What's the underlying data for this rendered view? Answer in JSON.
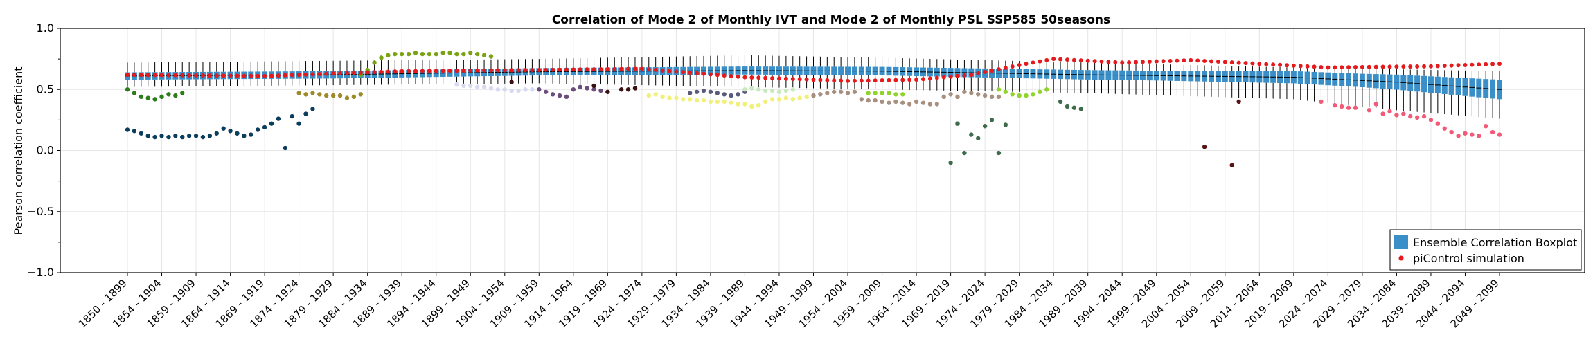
{
  "chart_data": {
    "type": "box",
    "title": "Correlation of Mode 2 of Monthly IVT and Mode 2 of Monthly PSL SSP585 50seasons",
    "xlabel": "",
    "ylabel": "Pearson correlation coefficient",
    "ylim": [
      -1.0,
      1.0
    ],
    "yticks": [
      "1.0",
      "0.5",
      "0.0",
      "−0.5",
      "−1.0"
    ],
    "grid": true,
    "legend_position": "bottom-right",
    "legend": [
      {
        "label": "Ensemble Correlation Boxplot",
        "marker": "square",
        "color": "#3a8fc8"
      },
      {
        "label": "piControl simulation",
        "marker": "dot",
        "color": "#e41a1c"
      }
    ],
    "x_tick_labels": [
      "1850 - 1899",
      "1854 - 1904",
      "1859 - 1909",
      "1864 - 1914",
      "1869 - 1919",
      "1874 - 1924",
      "1879 - 1929",
      "1884 - 1934",
      "1889 - 1939",
      "1894 - 1944",
      "1899 - 1949",
      "1904 - 1954",
      "1909 - 1959",
      "1914 - 1964",
      "1919 - 1969",
      "1924 - 1974",
      "1929 - 1979",
      "1934 - 1984",
      "1939 - 1989",
      "1944 - 1994",
      "1949 - 1999",
      "1954 - 2004",
      "1959 - 2009",
      "1964 - 2014",
      "1969 - 2019",
      "1974 - 2024",
      "1979 - 2029",
      "1984 - 2034",
      "1989 - 2039",
      "1994 - 2044",
      "1999 - 2049",
      "2004 - 2054",
      "2009 - 2059",
      "2014 - 2064",
      "2019 - 2069",
      "2024 - 2074",
      "2029 - 2079",
      "2034 - 2084",
      "2039 - 2089",
      "2044 - 2094",
      "2049 - 2099"
    ],
    "box_window_count": 201,
    "box_median_keyframes": [
      [
        0,
        0.61
      ],
      [
        30,
        0.62
      ],
      [
        60,
        0.645
      ],
      [
        90,
        0.655
      ],
      [
        110,
        0.65
      ],
      [
        140,
        0.62
      ],
      [
        170,
        0.6
      ],
      [
        185,
        0.56
      ],
      [
        200,
        0.5
      ]
    ],
    "box_iqr_half_keyframes": [
      [
        0,
        0.03
      ],
      [
        60,
        0.03
      ],
      [
        110,
        0.035
      ],
      [
        150,
        0.04
      ],
      [
        180,
        0.055
      ],
      [
        200,
        0.08
      ]
    ],
    "box_whisker_low_keyframes": [
      [
        0,
        0.52
      ],
      [
        60,
        0.55
      ],
      [
        110,
        0.5
      ],
      [
        140,
        0.47
      ],
      [
        170,
        0.42
      ],
      [
        185,
        0.33
      ],
      [
        200,
        0.26
      ]
    ],
    "box_whisker_high_keyframes": [
      [
        0,
        0.72
      ],
      [
        60,
        0.75
      ],
      [
        90,
        0.78
      ],
      [
        110,
        0.76
      ],
      [
        140,
        0.72
      ],
      [
        170,
        0.68
      ],
      [
        200,
        0.65
      ]
    ],
    "picontrol_keyframes": [
      [
        0,
        0.62
      ],
      [
        20,
        0.61
      ],
      [
        40,
        0.65
      ],
      [
        60,
        0.66
      ],
      [
        75,
        0.67
      ],
      [
        90,
        0.6
      ],
      [
        105,
        0.57
      ],
      [
        115,
        0.58
      ],
      [
        123,
        0.62
      ],
      [
        130,
        0.7
      ],
      [
        135,
        0.75
      ],
      [
        145,
        0.72
      ],
      [
        155,
        0.74
      ],
      [
        165,
        0.71
      ],
      [
        175,
        0.68
      ],
      [
        190,
        0.69
      ],
      [
        200,
        0.71
      ]
    ],
    "model_point_groups": [
      {
        "color": "#0b3d5c",
        "points": [
          [
            0,
            0.17
          ],
          [
            1,
            0.16
          ],
          [
            2,
            0.14
          ],
          [
            3,
            0.12
          ],
          [
            4,
            0.11
          ],
          [
            5,
            0.12
          ],
          [
            6,
            0.11
          ],
          [
            7,
            0.12
          ],
          [
            8,
            0.11
          ],
          [
            9,
            0.12
          ],
          [
            10,
            0.12
          ],
          [
            11,
            0.11
          ],
          [
            12,
            0.12
          ],
          [
            13,
            0.14
          ],
          [
            14,
            0.18
          ],
          [
            15,
            0.16
          ],
          [
            16,
            0.14
          ],
          [
            17,
            0.12
          ],
          [
            18,
            0.13
          ],
          [
            19,
            0.17
          ],
          [
            20,
            0.19
          ],
          [
            21,
            0.22
          ],
          [
            22,
            0.26
          ],
          [
            23,
            0.02
          ],
          [
            24,
            0.28
          ],
          [
            25,
            0.22
          ],
          [
            26,
            0.3
          ],
          [
            27,
            0.34
          ]
        ]
      },
      {
        "color": "#2e7d1c",
        "points": [
          [
            0,
            0.5
          ],
          [
            1,
            0.47
          ],
          [
            2,
            0.44
          ],
          [
            3,
            0.43
          ],
          [
            4,
            0.42
          ],
          [
            5,
            0.44
          ],
          [
            6,
            0.46
          ],
          [
            7,
            0.45
          ],
          [
            8,
            0.47
          ]
        ]
      },
      {
        "color": "#9e8a2a",
        "points": [
          [
            25,
            0.47
          ],
          [
            26,
            0.46
          ],
          [
            27,
            0.47
          ],
          [
            28,
            0.46
          ],
          [
            29,
            0.45
          ],
          [
            30,
            0.45
          ],
          [
            31,
            0.45
          ],
          [
            32,
            0.43
          ],
          [
            33,
            0.44
          ],
          [
            34,
            0.46
          ]
        ]
      },
      {
        "color": "#7aa312",
        "points": [
          [
            34,
            0.62
          ],
          [
            35,
            0.66
          ],
          [
            36,
            0.72
          ],
          [
            37,
            0.76
          ],
          [
            38,
            0.78
          ],
          [
            39,
            0.79
          ],
          [
            40,
            0.79
          ],
          [
            41,
            0.79
          ],
          [
            42,
            0.8
          ],
          [
            43,
            0.79
          ],
          [
            44,
            0.79
          ],
          [
            45,
            0.79
          ],
          [
            46,
            0.8
          ],
          [
            47,
            0.8
          ],
          [
            48,
            0.79
          ],
          [
            49,
            0.79
          ],
          [
            50,
            0.8
          ],
          [
            51,
            0.79
          ],
          [
            52,
            0.78
          ],
          [
            53,
            0.77
          ]
        ]
      },
      {
        "color": "#d8d8f2",
        "points": [
          [
            48,
            0.54
          ],
          [
            49,
            0.53
          ],
          [
            50,
            0.53
          ],
          [
            51,
            0.52
          ],
          [
            52,
            0.52
          ],
          [
            53,
            0.51
          ],
          [
            54,
            0.5
          ],
          [
            55,
            0.5
          ],
          [
            56,
            0.49
          ],
          [
            57,
            0.49
          ],
          [
            58,
            0.5
          ],
          [
            59,
            0.5
          ]
        ]
      },
      {
        "color": "#6b4c7a",
        "points": [
          [
            60,
            0.5
          ],
          [
            61,
            0.48
          ],
          [
            62,
            0.46
          ],
          [
            63,
            0.45
          ],
          [
            64,
            0.44
          ],
          [
            65,
            0.5
          ],
          [
            66,
            0.52
          ],
          [
            67,
            0.51
          ],
          [
            68,
            0.5
          ],
          [
            69,
            0.49
          ]
        ]
      },
      {
        "color": "#3a1010",
        "points": [
          [
            56,
            0.56
          ],
          [
            68,
            0.53
          ],
          [
            70,
            0.48
          ],
          [
            72,
            0.5
          ],
          [
            73,
            0.5
          ],
          [
            74,
            0.51
          ]
        ]
      },
      {
        "color": "#f2ef7a",
        "points": [
          [
            76,
            0.45
          ],
          [
            77,
            0.46
          ],
          [
            78,
            0.44
          ],
          [
            79,
            0.43
          ],
          [
            80,
            0.43
          ],
          [
            81,
            0.42
          ],
          [
            82,
            0.42
          ],
          [
            83,
            0.41
          ],
          [
            84,
            0.41
          ],
          [
            85,
            0.4
          ],
          [
            86,
            0.4
          ],
          [
            87,
            0.4
          ],
          [
            88,
            0.39
          ],
          [
            89,
            0.38
          ],
          [
            90,
            0.38
          ],
          [
            91,
            0.36
          ],
          [
            92,
            0.37
          ],
          [
            93,
            0.4
          ],
          [
            94,
            0.42
          ],
          [
            95,
            0.42
          ],
          [
            96,
            0.43
          ],
          [
            97,
            0.42
          ],
          [
            98,
            0.43
          ],
          [
            99,
            0.44
          ]
        ]
      },
      {
        "color": "#5a5a7a",
        "points": [
          [
            82,
            0.47
          ],
          [
            83,
            0.48
          ],
          [
            84,
            0.49
          ],
          [
            85,
            0.48
          ],
          [
            86,
            0.47
          ],
          [
            87,
            0.46
          ],
          [
            88,
            0.45
          ],
          [
            89,
            0.46
          ],
          [
            90,
            0.48
          ]
        ]
      },
      {
        "color": "#c8e8c0",
        "points": [
          [
            90,
            0.5
          ],
          [
            91,
            0.51
          ],
          [
            92,
            0.5
          ],
          [
            93,
            0.49
          ],
          [
            94,
            0.49
          ],
          [
            95,
            0.48
          ],
          [
            96,
            0.49
          ],
          [
            97,
            0.5
          ]
        ]
      },
      {
        "color": "#a89080",
        "points": [
          [
            100,
            0.45
          ],
          [
            101,
            0.46
          ],
          [
            102,
            0.47
          ],
          [
            103,
            0.48
          ],
          [
            104,
            0.48
          ],
          [
            105,
            0.47
          ],
          [
            106,
            0.48
          ],
          [
            107,
            0.42
          ],
          [
            108,
            0.41
          ],
          [
            109,
            0.41
          ],
          [
            110,
            0.4
          ],
          [
            111,
            0.39
          ],
          [
            112,
            0.4
          ],
          [
            113,
            0.39
          ],
          [
            114,
            0.38
          ],
          [
            115,
            0.4
          ],
          [
            116,
            0.39
          ],
          [
            117,
            0.38
          ],
          [
            118,
            0.38
          ],
          [
            119,
            0.44
          ],
          [
            120,
            0.46
          ],
          [
            121,
            0.44
          ],
          [
            122,
            0.48
          ],
          [
            123,
            0.47
          ],
          [
            124,
            0.46
          ],
          [
            125,
            0.45
          ],
          [
            126,
            0.44
          ],
          [
            127,
            0.44
          ]
        ]
      },
      {
        "color": "#8fd42a",
        "points": [
          [
            108,
            0.47
          ],
          [
            109,
            0.47
          ],
          [
            110,
            0.47
          ],
          [
            111,
            0.47
          ],
          [
            112,
            0.46
          ],
          [
            113,
            0.46
          ],
          [
            127,
            0.5
          ],
          [
            128,
            0.48
          ],
          [
            129,
            0.46
          ],
          [
            130,
            0.45
          ],
          [
            131,
            0.45
          ],
          [
            132,
            0.46
          ],
          [
            133,
            0.48
          ],
          [
            134,
            0.5
          ]
        ]
      },
      {
        "color": "#3e6b4a",
        "points": [
          [
            120,
            -0.1
          ],
          [
            121,
            0.22
          ],
          [
            122,
            -0.02
          ],
          [
            123,
            0.13
          ],
          [
            124,
            0.1
          ],
          [
            125,
            0.2
          ],
          [
            126,
            0.25
          ],
          [
            127,
            -0.02
          ],
          [
            128,
            0.21
          ],
          [
            136,
            0.4
          ],
          [
            137,
            0.36
          ],
          [
            138,
            0.35
          ],
          [
            139,
            0.34
          ]
        ]
      },
      {
        "color": "#5a1212",
        "points": [
          [
            157,
            0.03
          ],
          [
            161,
            -0.12
          ],
          [
            162,
            0.4
          ]
        ]
      },
      {
        "color": "#f25a78",
        "points": [
          [
            174,
            0.4
          ],
          [
            176,
            0.37
          ],
          [
            177,
            0.36
          ],
          [
            178,
            0.35
          ],
          [
            179,
            0.35
          ],
          [
            181,
            0.33
          ],
          [
            182,
            0.38
          ],
          [
            183,
            0.3
          ],
          [
            184,
            0.32
          ],
          [
            185,
            0.29
          ],
          [
            186,
            0.3
          ],
          [
            187,
            0.28
          ],
          [
            188,
            0.27
          ],
          [
            189,
            0.28
          ],
          [
            190,
            0.25
          ],
          [
            191,
            0.22
          ],
          [
            192,
            0.18
          ],
          [
            193,
            0.15
          ],
          [
            194,
            0.12
          ],
          [
            195,
            0.14
          ],
          [
            196,
            0.13
          ],
          [
            197,
            0.12
          ],
          [
            198,
            0.2
          ],
          [
            199,
            0.15
          ],
          [
            200,
            0.13
          ]
        ]
      }
    ]
  }
}
